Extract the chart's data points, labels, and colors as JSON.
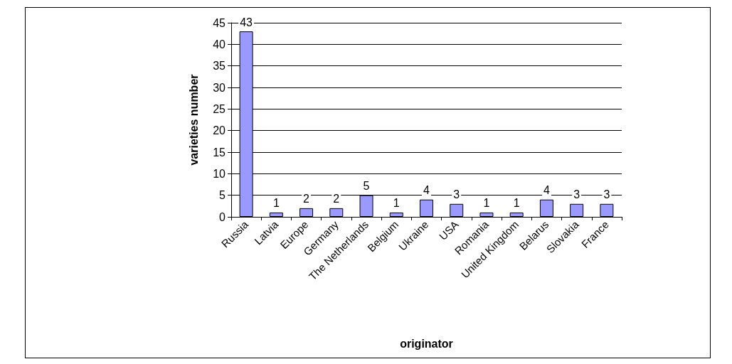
{
  "chart_data": {
    "type": "bar",
    "xlabel": "originator",
    "ylabel": "varieties number",
    "categories": [
      "Russia",
      "Latvia",
      "Europe",
      "Germany",
      "The Netherlands",
      "Belgium",
      "Ukraine",
      "USA",
      "Romania",
      "United Kingdom",
      "Belarus",
      "Slovakia",
      "France"
    ],
    "values": [
      43,
      1,
      2,
      2,
      5,
      1,
      4,
      3,
      1,
      1,
      4,
      3,
      3
    ],
    "color": "#9999ff",
    "ylim": [
      0,
      45
    ],
    "yticks": [
      0,
      5,
      10,
      15,
      20,
      25,
      30,
      35,
      40,
      45
    ],
    "grid": "y",
    "data_labels": true
  }
}
